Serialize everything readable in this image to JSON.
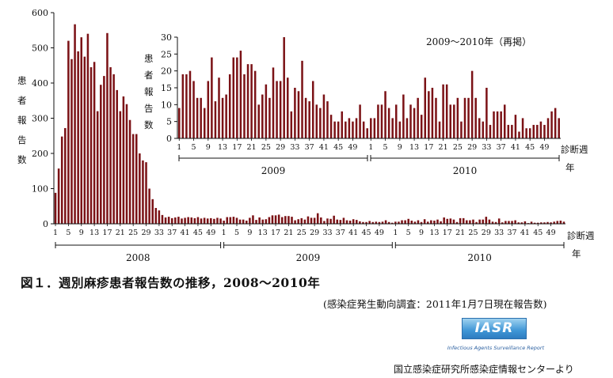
{
  "caption": "図１．週別麻疹患者報告数の推移，2008～2010年",
  "source_note": "(感染症発生動向調査：2011年1月7日現在報告数)",
  "logo": {
    "text": "IASR",
    "subtext": "Infectious Agents Surveillance Report"
  },
  "credit": "国立感染症研究所感染症情報センターより",
  "bar_color": "#7b1216",
  "chart_data": [
    {
      "type": "bar",
      "title": "",
      "ylabel": "患者報告数",
      "xlabel": "診断週",
      "xlabel2": "年",
      "ylim": [
        0,
        600
      ],
      "yticks": [
        0,
        100,
        200,
        300,
        400,
        500,
        600
      ],
      "x_tick_labels": [
        "1",
        "5",
        "9",
        "13",
        "17",
        "21",
        "25",
        "29",
        "33",
        "37",
        "41",
        "45",
        "49"
      ],
      "years": [
        "2008",
        "2009",
        "2010"
      ],
      "series": [
        {
          "year": "2008",
          "values": [
            88,
            157,
            248,
            272,
            520,
            468,
            567,
            490,
            530,
            475,
            540,
            445,
            460,
            320,
            395,
            420,
            542,
            445,
            425,
            380,
            320,
            362,
            340,
            295,
            255,
            255,
            200,
            180,
            175,
            100,
            70,
            45,
            38,
            25,
            18,
            20,
            16,
            18,
            20,
            15,
            17,
            19,
            18,
            16,
            19,
            15,
            17,
            15,
            16,
            14,
            17,
            15
          ]
        },
        {
          "year": "2009",
          "values": [
            9,
            19,
            19,
            20,
            17,
            12,
            12,
            9,
            17,
            24,
            11,
            18,
            12,
            13,
            19,
            24,
            24,
            26,
            19,
            22,
            22,
            20,
            10,
            13,
            16,
            12,
            21,
            17,
            17,
            30,
            18,
            8,
            15,
            14,
            23,
            12,
            11,
            17,
            10,
            9,
            13,
            11,
            7,
            5,
            5,
            8,
            5,
            6,
            5,
            6,
            10,
            5,
            3
          ]
        },
        {
          "year": "2010",
          "values": [
            6,
            6,
            10,
            10,
            14,
            9,
            6,
            10,
            5,
            13,
            6,
            10,
            9,
            12,
            7,
            18,
            14,
            15,
            12,
            5,
            16,
            16,
            10,
            10,
            12,
            5,
            12,
            12,
            20,
            12,
            6,
            5,
            15,
            4,
            8,
            8,
            8,
            10,
            4,
            4,
            7,
            2,
            6,
            3,
            3,
            4,
            4,
            5,
            4,
            6,
            8,
            9,
            6
          ]
        }
      ]
    },
    {
      "type": "bar",
      "title": "2009～2010年（再掲）",
      "ylabel": "患者報告数",
      "xlabel": "診断週",
      "xlabel2": "年",
      "ylim": [
        0,
        30
      ],
      "yticks": [
        0,
        5,
        10,
        15,
        20,
        25,
        30
      ],
      "x_tick_labels": [
        "1",
        "5",
        "9",
        "13",
        "17",
        "21",
        "25",
        "29",
        "33",
        "37",
        "41",
        "45",
        "49"
      ],
      "years": [
        "2009",
        "2010"
      ],
      "series_ref": "same as 2009 and 2010 series above"
    }
  ]
}
